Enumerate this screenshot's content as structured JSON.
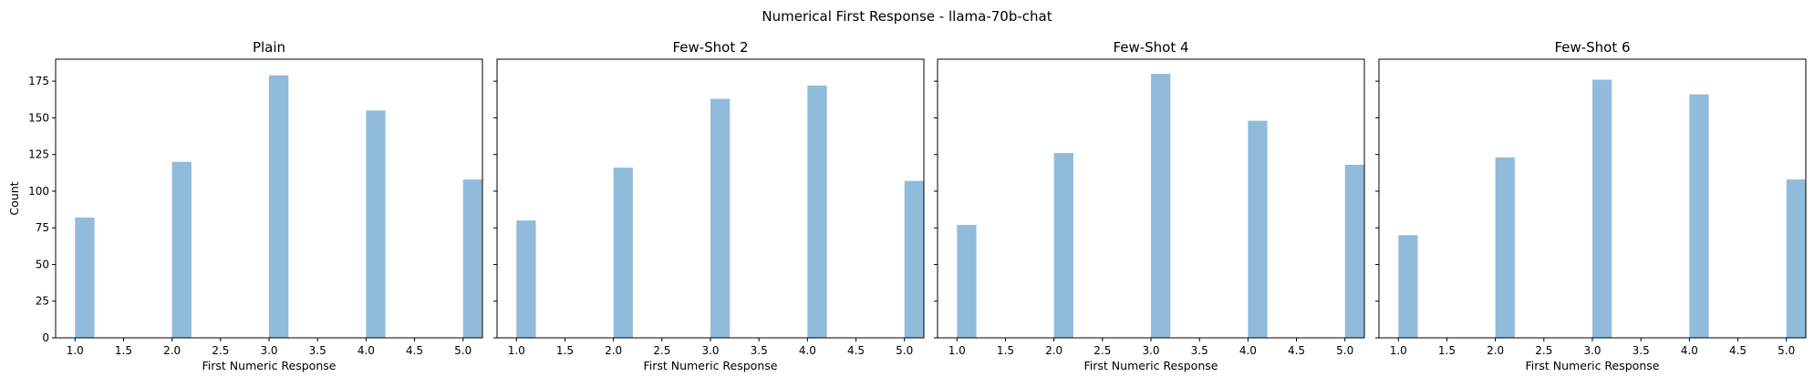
{
  "figure": {
    "title": "Numerical First Response - llama-70b-chat"
  },
  "chart_data": [
    {
      "type": "bar",
      "title": "Plain",
      "xlabel": "First Numeric Response",
      "ylabel": "Count",
      "x": [
        1,
        2,
        3,
        4,
        5
      ],
      "values": [
        82,
        120,
        179,
        155,
        108
      ],
      "xlim": [
        0.8,
        5.2
      ],
      "ylim": [
        0,
        190
      ],
      "xticks": [
        1.0,
        1.5,
        2.0,
        2.5,
        3.0,
        3.5,
        4.0,
        4.5,
        5.0
      ],
      "yticks": [
        0,
        25,
        50,
        75,
        100,
        125,
        150,
        175
      ],
      "bar_color": "#90bbdb",
      "grid": false
    },
    {
      "type": "bar",
      "title": "Few-Shot 2",
      "xlabel": "First Numeric Response",
      "x": [
        1,
        2,
        3,
        4,
        5
      ],
      "values": [
        80,
        116,
        163,
        172,
        107
      ],
      "xlim": [
        0.8,
        5.2
      ],
      "ylim": [
        0,
        190
      ],
      "xticks": [
        1.0,
        1.5,
        2.0,
        2.5,
        3.0,
        3.5,
        4.0,
        4.5,
        5.0
      ],
      "yticks": [
        0,
        25,
        50,
        75,
        100,
        125,
        150,
        175
      ],
      "bar_color": "#90bbdb",
      "grid": false
    },
    {
      "type": "bar",
      "title": "Few-Shot 4",
      "xlabel": "First Numeric Response",
      "x": [
        1,
        2,
        3,
        4,
        5
      ],
      "values": [
        77,
        126,
        180,
        148,
        118
      ],
      "xlim": [
        0.8,
        5.2
      ],
      "ylim": [
        0,
        190
      ],
      "xticks": [
        1.0,
        1.5,
        2.0,
        2.5,
        3.0,
        3.5,
        4.0,
        4.5,
        5.0
      ],
      "yticks": [
        0,
        25,
        50,
        75,
        100,
        125,
        150,
        175
      ],
      "bar_color": "#90bbdb",
      "grid": false
    },
    {
      "type": "bar",
      "title": "Few-Shot 6",
      "xlabel": "First Numeric Response",
      "x": [
        1,
        2,
        3,
        4,
        5
      ],
      "values": [
        70,
        123,
        176,
        166,
        108
      ],
      "xlim": [
        0.8,
        5.2
      ],
      "ylim": [
        0,
        190
      ],
      "xticks": [
        1.0,
        1.5,
        2.0,
        2.5,
        3.0,
        3.5,
        4.0,
        4.5,
        5.0
      ],
      "yticks": [
        0,
        25,
        50,
        75,
        100,
        125,
        150,
        175
      ],
      "bar_color": "#90bbdb",
      "grid": false
    }
  ]
}
